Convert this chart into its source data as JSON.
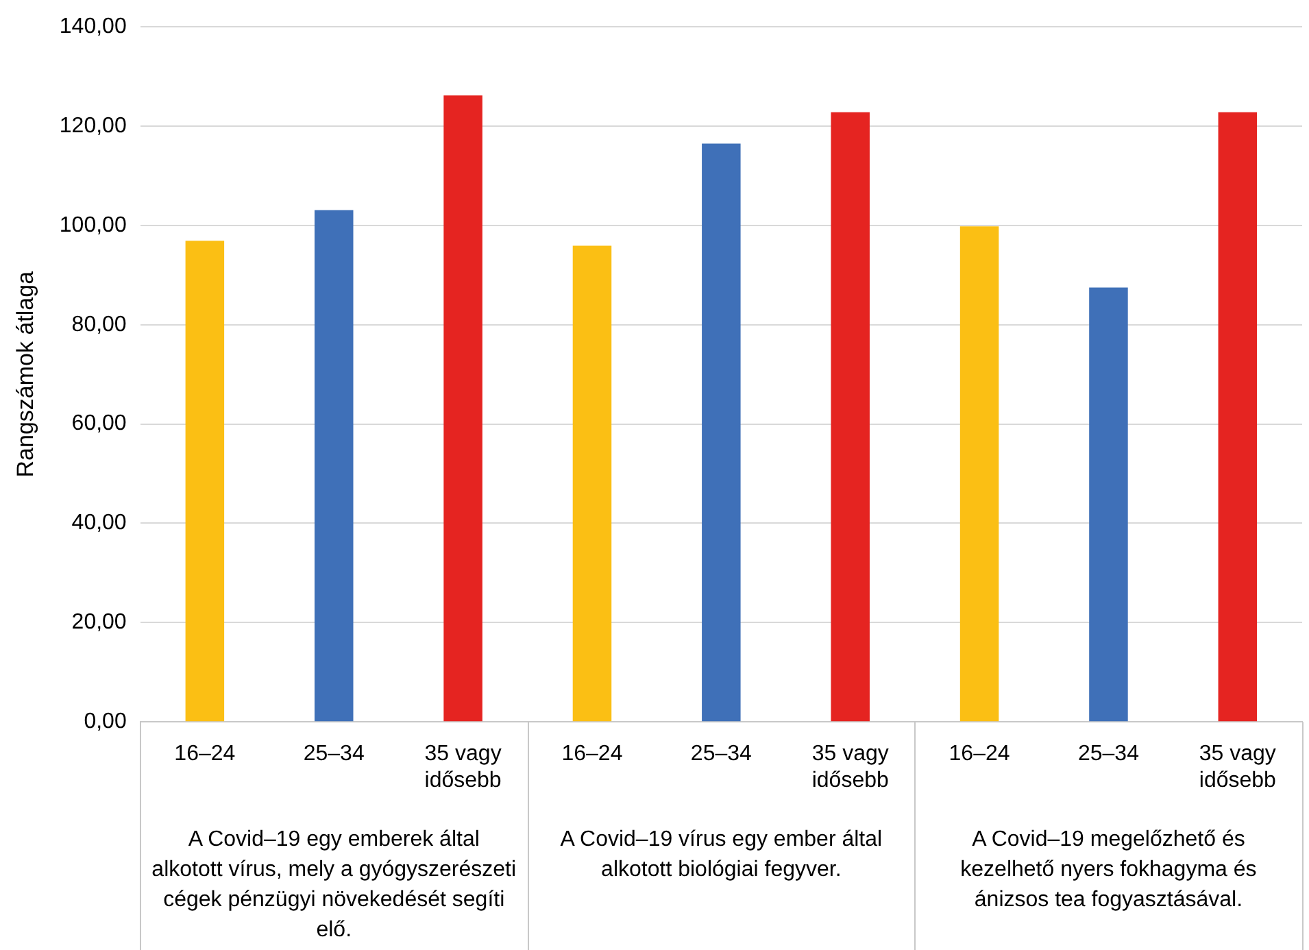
{
  "chart_data": {
    "type": "bar",
    "ylabel": "Rangszámok átlaga",
    "categories": [
      "16–24",
      "25–34",
      "35 vagy idősebb",
      "16–24",
      "25–34",
      "35 vagy idősebb",
      "16–24",
      "25–34",
      "35 vagy idősebb"
    ],
    "values": [
      96.9,
      103.1,
      126.2,
      95.9,
      116.5,
      122.8,
      99.8,
      87.5,
      122.8
    ],
    "colors": [
      "#fbbf14",
      "#3f70b8",
      "#e52421",
      "#fbbf14",
      "#3f70b8",
      "#e52421",
      "#fbbf14",
      "#3f70b8",
      "#e52421"
    ],
    "ylim": [
      0,
      140
    ],
    "yticks": [
      {
        "value": 0,
        "label": "0,00"
      },
      {
        "value": 20,
        "label": "20,00"
      },
      {
        "value": 40,
        "label": "40,00"
      },
      {
        "value": 60,
        "label": "60,00"
      },
      {
        "value": 80,
        "label": "80,00"
      },
      {
        "value": 100,
        "label": "100,00"
      },
      {
        "value": 120,
        "label": "120,00"
      },
      {
        "value": 140,
        "label": "140,00"
      }
    ],
    "annotations": [
      "A Covid–19 egy emberek által alkotott vírus, mely a gyógyszerészeti cégek pénzügyi növekedését segíti elő.",
      "A Covid–19 vírus egy ember által alkotott biológiai fegyver.",
      "A Covid–19 megelőzhető és kezelhető nyers fokhagyma és ánizsos tea fogyasztásával."
    ],
    "grid": "y",
    "legend": false
  }
}
